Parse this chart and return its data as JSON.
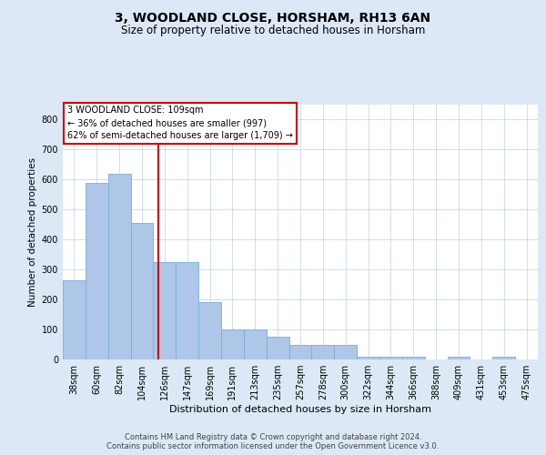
{
  "title": "3, WOODLAND CLOSE, HORSHAM, RH13 6AN",
  "subtitle": "Size of property relative to detached houses in Horsham",
  "xlabel": "Distribution of detached houses by size in Horsham",
  "ylabel": "Number of detached properties",
  "categories": [
    "38sqm",
    "60sqm",
    "82sqm",
    "104sqm",
    "126sqm",
    "147sqm",
    "169sqm",
    "191sqm",
    "213sqm",
    "235sqm",
    "257sqm",
    "278sqm",
    "300sqm",
    "322sqm",
    "344sqm",
    "366sqm",
    "388sqm",
    "409sqm",
    "431sqm",
    "453sqm",
    "475sqm"
  ],
  "values": [
    265,
    590,
    620,
    455,
    325,
    325,
    190,
    100,
    100,
    75,
    50,
    50,
    50,
    10,
    10,
    10,
    0,
    10,
    0,
    10,
    0
  ],
  "bar_color": "#aec6e8",
  "bar_edge_color": "#7aafd4",
  "vline_color": "#cc0000",
  "vline_pos": 3.73,
  "annotation_text": "3 WOODLAND CLOSE: 109sqm\n← 36% of detached houses are smaller (997)\n62% of semi-detached houses are larger (1,709) →",
  "ann_box_color": "#cc0000",
  "ylim": [
    0,
    850
  ],
  "yticks": [
    0,
    100,
    200,
    300,
    400,
    500,
    600,
    700,
    800
  ],
  "footer_line1": "Contains HM Land Registry data © Crown copyright and database right 2024.",
  "footer_line2": "Contains public sector information licensed under the Open Government Licence v3.0.",
  "bg_color": "#dce8f5",
  "plot_bg_color": "#ffffff",
  "grid_color": "#c0d0e8",
  "title_fontsize": 10,
  "subtitle_fontsize": 8.5,
  "ylabel_fontsize": 7.5,
  "xlabel_fontsize": 8,
  "tick_fontsize": 7,
  "ann_fontsize": 7,
  "footer_fontsize": 6
}
